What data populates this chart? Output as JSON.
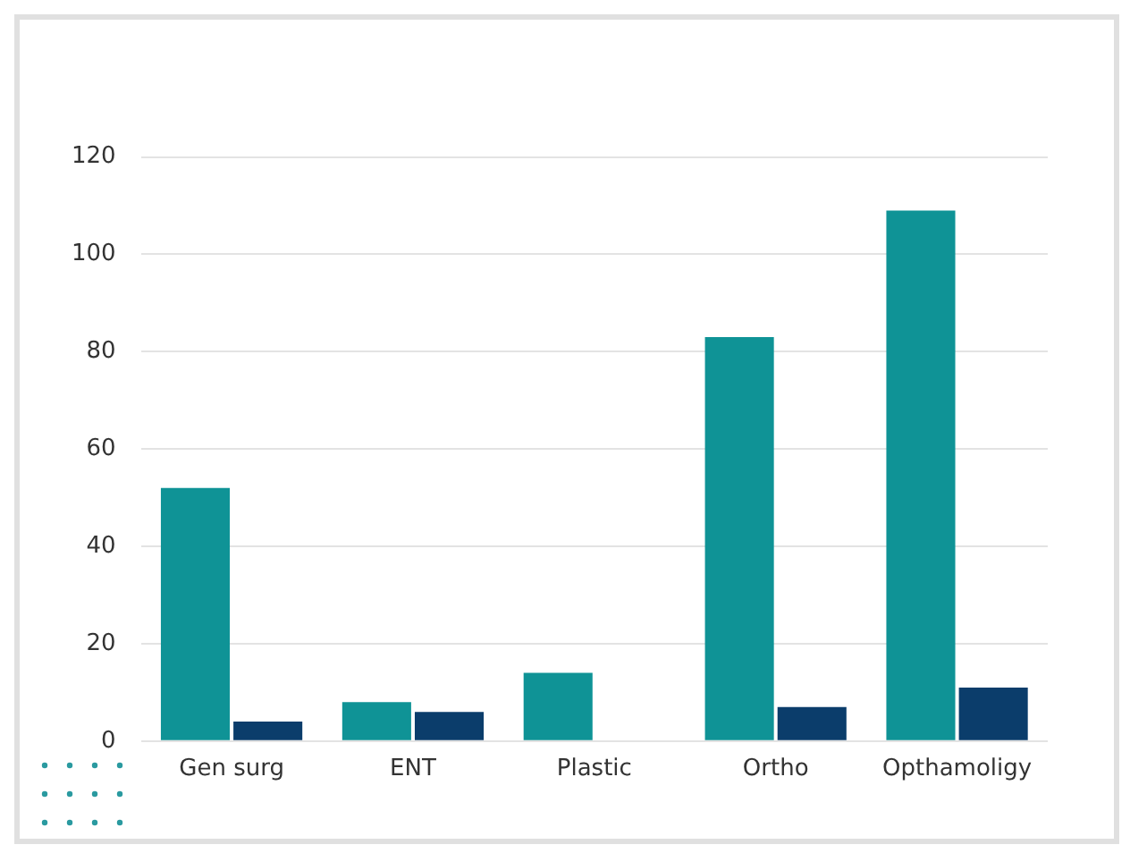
{
  "chart_data": {
    "type": "bar",
    "categories": [
      "Gen surg",
      "ENT",
      "Plastic",
      "Ortho",
      "Opthamoligy"
    ],
    "series": [
      {
        "color": "#0f9396",
        "values": [
          52,
          8,
          14,
          83,
          109
        ]
      },
      {
        "color": "#0b3d6b",
        "values": [
          4,
          6,
          0,
          7,
          11
        ]
      }
    ],
    "ylim": [
      0,
      120
    ],
    "yticks": [
      0,
      20,
      40,
      60,
      80,
      100,
      120
    ],
    "grid": "y",
    "legend": false
  }
}
